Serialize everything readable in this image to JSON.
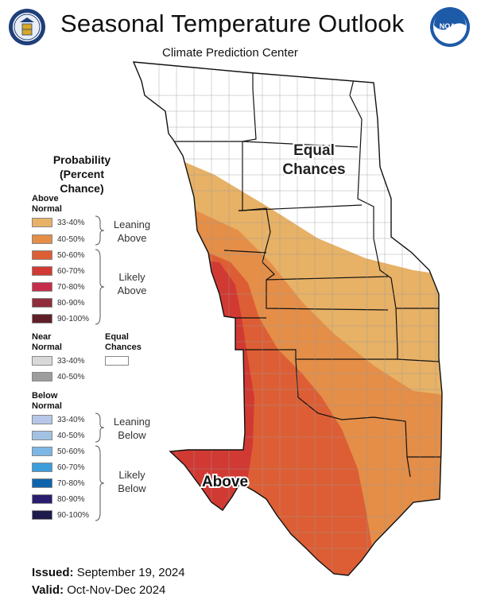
{
  "header": {
    "title": "Seasonal Temperature Outlook",
    "subtitle": "Climate Prediction Center"
  },
  "legend": {
    "title_line1": "Probability",
    "title_line2": "(Percent Chance)",
    "above": {
      "header_line1": "Above",
      "header_line2": "Normal",
      "ranges": [
        {
          "label": "33-40%",
          "color": "#e7b166"
        },
        {
          "label": "40-50%",
          "color": "#e48e48"
        },
        {
          "label": "50-60%",
          "color": "#dd5e34"
        },
        {
          "label": "60-70%",
          "color": "#d13a33"
        },
        {
          "label": "70-80%",
          "color": "#c62d4a"
        },
        {
          "label": "80-90%",
          "color": "#8f2d3c"
        },
        {
          "label": "90-100%",
          "color": "#5f1f28"
        }
      ],
      "leaning_line1": "Leaning",
      "leaning_line2": "Above",
      "likely_line1": "Likely",
      "likely_line2": "Above"
    },
    "near": {
      "header_line1": "Near",
      "header_line2": "Normal",
      "ranges": [
        {
          "label": "33-40%",
          "color": "#d9d9d9"
        },
        {
          "label": "40-50%",
          "color": "#9d9d9d"
        }
      ]
    },
    "equal_chances": {
      "line1": "Equal",
      "line2": "Chances",
      "color": "#ffffff"
    },
    "below": {
      "header_line1": "Below",
      "header_line2": "Normal",
      "ranges": [
        {
          "label": "33-40%",
          "color": "#b6c7e8"
        },
        {
          "label": "40-50%",
          "color": "#a3c2e3"
        },
        {
          "label": "50-60%",
          "color": "#7cb7e6"
        },
        {
          "label": "60-70%",
          "color": "#3c9ddb"
        },
        {
          "label": "70-80%",
          "color": "#0e63ad"
        },
        {
          "label": "80-90%",
          "color": "#2a1c6e"
        },
        {
          "label": "90-100%",
          "color": "#1d1a4c"
        }
      ],
      "leaning_line1": "Leaning",
      "leaning_line2": "Below",
      "likely_line1": "Likely",
      "likely_line2": "Below"
    }
  },
  "map": {
    "label_equal_line1": "Equal",
    "label_equal_line2": "Chances",
    "label_above": "Above",
    "zone_colors": {
      "equal": "#ffffff",
      "above_33_40": "#e7b166",
      "above_40_50": "#e48e48",
      "above_50_60": "#dd5e34",
      "above_60_70": "#d13a33"
    }
  },
  "footer": {
    "issued_label": "Issued:",
    "issued_value": "September 19, 2024",
    "valid_label": "Valid:",
    "valid_value": "Oct-Nov-Dec 2024"
  },
  "logos": {
    "left": "commerce-seal-icon",
    "right": "noaa-logo-icon"
  }
}
